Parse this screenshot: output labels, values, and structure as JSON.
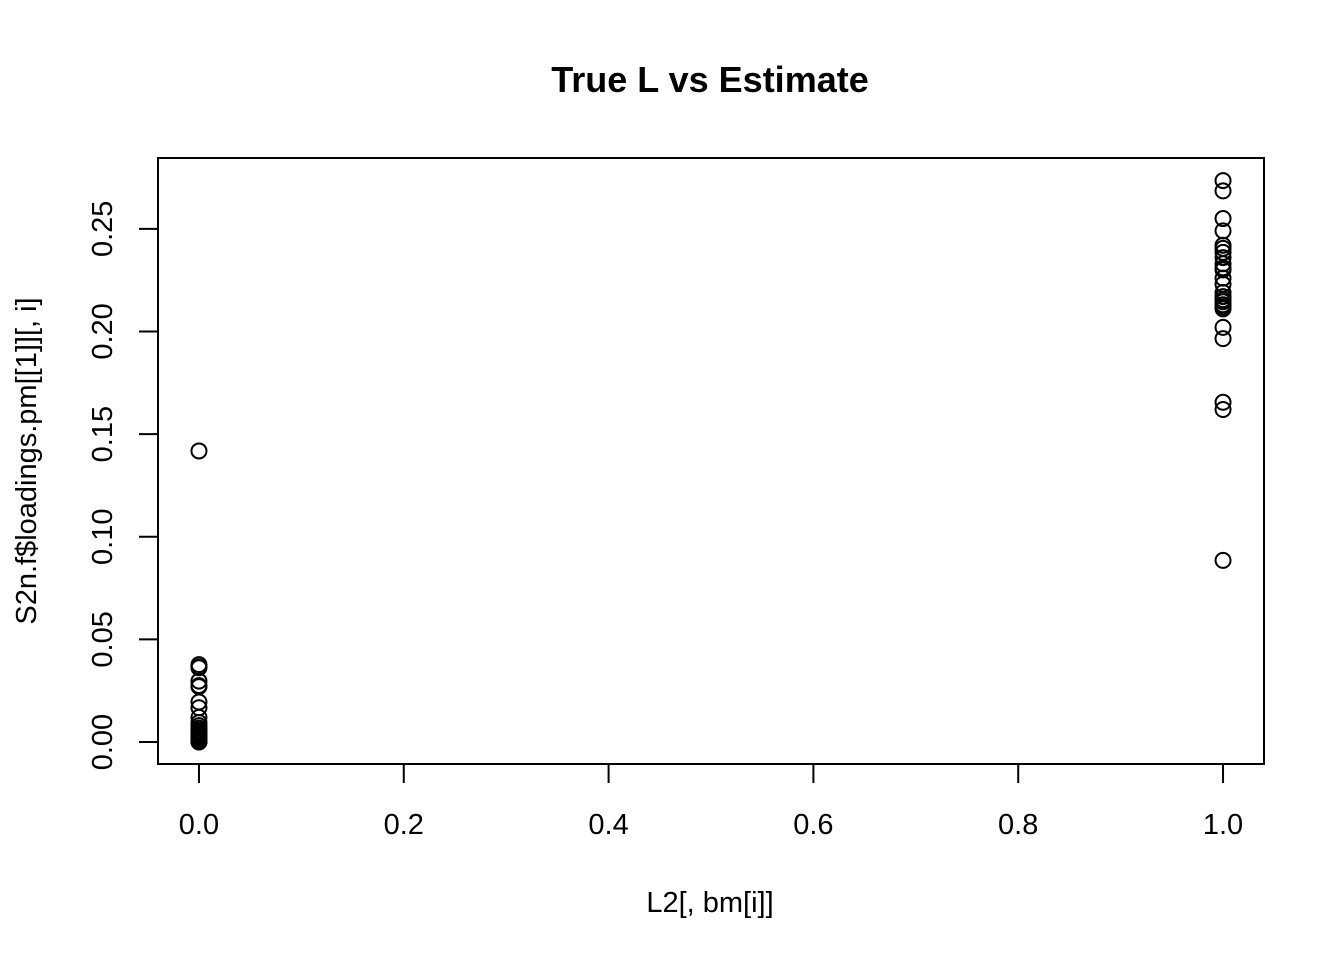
{
  "chart_data": {
    "type": "scatter",
    "title": "True L vs Estimate",
    "xlabel": "L2[, bm[i]]",
    "ylabel": "S2n.f$loadings.pm[[1]][, i]",
    "xlim": [
      -0.04,
      1.04
    ],
    "ylim": [
      -0.0107,
      0.2845
    ],
    "x_ticks": [
      0.0,
      0.2,
      0.4,
      0.6,
      0.8,
      1.0
    ],
    "x_tick_labels": [
      "0.0",
      "0.2",
      "0.4",
      "0.6",
      "0.8",
      "1.0"
    ],
    "y_ticks": [
      0.0,
      0.05,
      0.1,
      0.15,
      0.2,
      0.25
    ],
    "y_tick_labels": [
      "0.00",
      "0.05",
      "0.10",
      "0.15",
      "0.20",
      "0.25"
    ],
    "grid": false,
    "legend": "none",
    "marker": "open-circle",
    "color": "#000000",
    "series": [
      {
        "x": [
          0,
          0,
          0,
          0,
          0,
          0,
          0,
          0,
          0,
          0,
          0,
          0,
          0,
          0,
          0,
          0,
          0,
          0,
          0,
          0,
          0,
          0,
          0,
          0,
          0,
          0,
          0,
          0,
          0,
          0,
          1,
          1,
          1,
          1,
          1,
          1,
          1,
          1,
          1,
          1,
          1,
          1,
          1,
          1,
          1,
          1,
          1,
          1,
          1,
          1,
          1,
          1,
          1,
          1,
          1
        ],
        "y": [
          0.1418,
          0.0377,
          0.0366,
          0.0362,
          0.0297,
          0.0275,
          0.027,
          0.0195,
          0.0167,
          0.012,
          0.0095,
          0.008,
          0.0068,
          0.0058,
          0.005,
          0.0042,
          0.0035,
          0.003,
          0.0025,
          0.002,
          0.0015,
          0.0012,
          0.001,
          0.0008,
          0.0006,
          0.0004,
          0.0003,
          0.0002,
          0.0001,
          0.0,
          0.2735,
          0.2685,
          0.255,
          0.249,
          0.242,
          0.2405,
          0.2385,
          0.236,
          0.233,
          0.231,
          0.23,
          0.223,
          0.219,
          0.217,
          0.2155,
          0.2145,
          0.213,
          0.212,
          0.211,
          0.202,
          0.1965,
          0.1655,
          0.162,
          0.0885,
          0.226
        ]
      }
    ]
  }
}
